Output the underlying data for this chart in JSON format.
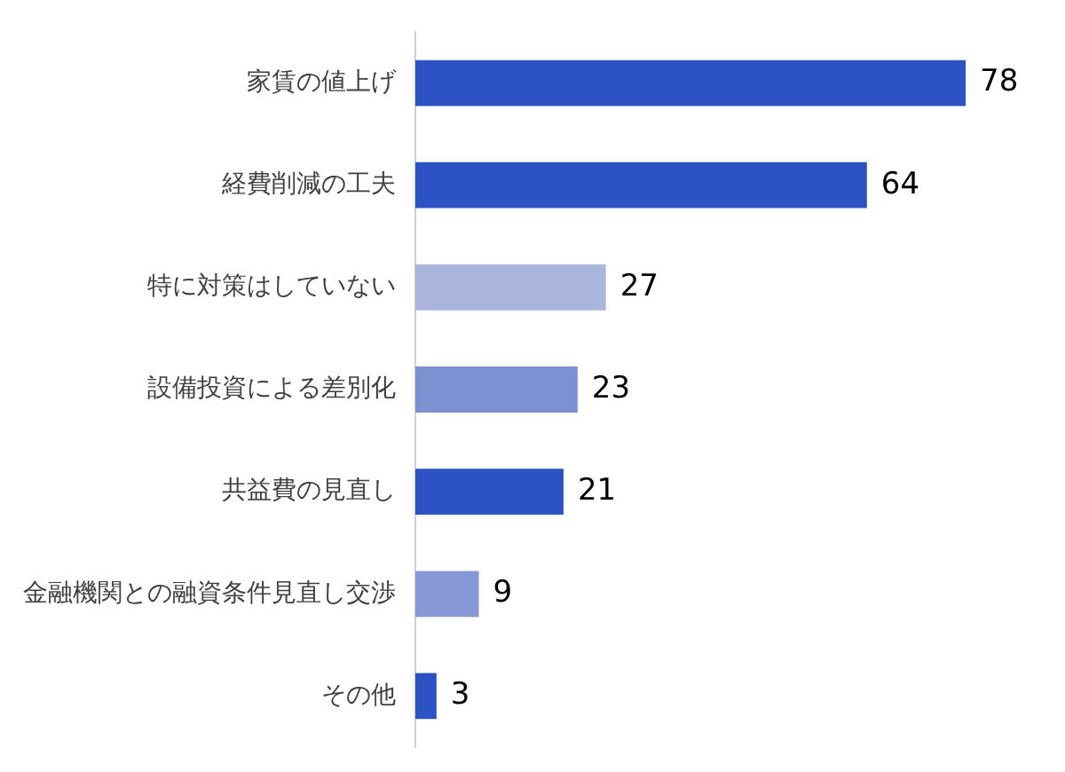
{
  "chart_data": {
    "type": "bar",
    "orientation": "horizontal",
    "categories": [
      "家賃の値上げ",
      "経費削減の工夫",
      "特に対策はしていない",
      "設備投資による差別化",
      "共益費の見直し",
      "金融機関との融資条件見直し交渉",
      "その他"
    ],
    "values": [
      78,
      64,
      27,
      23,
      21,
      9,
      3
    ],
    "colors": [
      "#2d52c4",
      "#2d52c4",
      "#a9b5dd",
      "#7d90d2",
      "#2d52c4",
      "#8798d6",
      "#2d52c4"
    ],
    "data_labels": true,
    "legend": false
  }
}
